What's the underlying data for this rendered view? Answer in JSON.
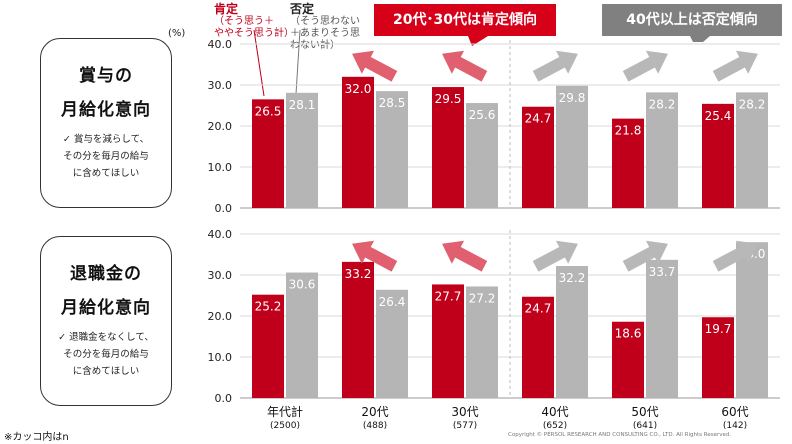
{
  "unit_label": "(%)",
  "legend": {
    "positive": {
      "name": "肯定",
      "desc1": "（そう思う＋",
      "desc2": "ややそう思う計）",
      "color": "#c0001a"
    },
    "negative": {
      "name": "否定",
      "desc1": "（そう思わない",
      "desc2": "＋あまりそう思",
      "desc3": "わない計）",
      "color": "#b5b5b5"
    }
  },
  "callouts": {
    "young": {
      "text": "20代･30代は肯定傾向",
      "color": "#d60019"
    },
    "old": {
      "text": "40代以上は否定傾向",
      "color": "#808080"
    }
  },
  "topics": [
    {
      "title1": "賞与の",
      "title2": "月給化意向",
      "desc1": "✓ 賞与を減らして、",
      "desc2": "その分を毎月の給与",
      "desc3": "に含めてほしい"
    },
    {
      "title1": "退職金の",
      "title2": "月給化意向",
      "desc1": "✓ 退職金をなくして、",
      "desc2": "その分を毎月の給与",
      "desc3": "に含めてほしい"
    }
  ],
  "footnote": "※カッコ内はn",
  "copyright": "Copyright © PERSOL RESEARCH AND CONSULTING CO., LTD. All Rights Reserved.",
  "chart_data": [
    {
      "type": "bar",
      "title": "賞与の月給化意向",
      "categories": [
        "年代計",
        "20代",
        "30代",
        "40代",
        "50代",
        "60代"
      ],
      "n": [
        "(2500)",
        "(488)",
        "(577)",
        "(652)",
        "(641)",
        "(142)"
      ],
      "series": [
        {
          "name": "肯定",
          "values": [
            26.5,
            32.0,
            29.5,
            24.7,
            21.8,
            25.4
          ],
          "labels": [
            "26.5",
            "32.0",
            "29.5",
            "24.7",
            "21.8",
            "25.4"
          ],
          "color": "#c0001a"
        },
        {
          "name": "否定",
          "values": [
            28.1,
            28.5,
            25.6,
            29.8,
            28.2,
            28.2
          ],
          "labels": [
            "28.1",
            "28.5",
            "25.6",
            "29.8",
            "28.2",
            "28.2"
          ],
          "color": "#b5b5b5"
        }
      ],
      "yticks": [
        "0.0",
        "10.0",
        "20.0",
        "30.0",
        "40.0"
      ],
      "ylim": [
        0,
        40
      ]
    },
    {
      "type": "bar",
      "title": "退職金の月給化意向",
      "categories": [
        "年代計",
        "20代",
        "30代",
        "40代",
        "50代",
        "60代"
      ],
      "n": [
        "(2500)",
        "(488)",
        "(577)",
        "(652)",
        "(641)",
        "(142)"
      ],
      "series": [
        {
          "name": "肯定",
          "values": [
            25.2,
            33.2,
            27.7,
            24.7,
            18.6,
            19.7
          ],
          "labels": [
            "25.2",
            "33.2",
            "27.7",
            "24.7",
            "18.6",
            "19.7"
          ],
          "color": "#c0001a"
        },
        {
          "name": "否定",
          "values": [
            30.6,
            26.4,
            27.2,
            32.2,
            33.7,
            38.0
          ],
          "labels": [
            "30.6",
            "26.4",
            "27.2",
            "32.2",
            "33.7",
            "38.0"
          ],
          "color": "#b5b5b5"
        }
      ],
      "yticks": [
        "0.0",
        "10.0",
        "20.0",
        "30.0",
        "40.0"
      ],
      "ylim": [
        0,
        40
      ]
    }
  ]
}
